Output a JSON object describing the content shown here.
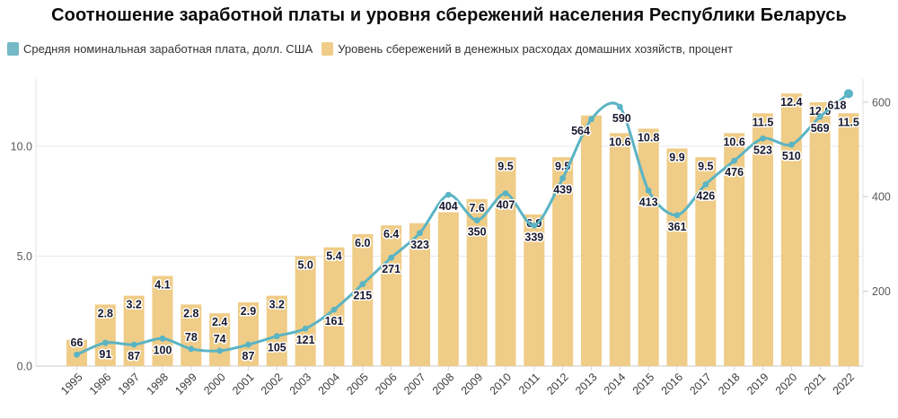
{
  "title": "Соотношение заработной платы и уровня сбережений населения Республики Беларусь",
  "legend": [
    {
      "label": "Средняя номинальная заработная плата, долл. США",
      "color": "#74b9c5"
    },
    {
      "label": "Уровень сбережений в денежных расходах домашних хозяйств, процент",
      "color": "#efcc87"
    }
  ],
  "colors": {
    "bar": "#efcc87",
    "line": "#5bb4c4",
    "label_text": "#18182e",
    "grid": "#e7e7e7",
    "baseline": "#c9c9c9",
    "axis_side": "#e3e3e3",
    "tick": "#d8d8d8",
    "axis_text": "#595959"
  },
  "chart_data": {
    "type": "bar",
    "subtype": "combo bar+line, dual axis",
    "title": "Соотношение заработной платы и уровня сбережений населения Республики Беларусь",
    "categories": [
      "1995",
      "1996",
      "1997",
      "1998",
      "1999",
      "2000",
      "2001",
      "2002",
      "2003",
      "2004",
      "2005",
      "2006",
      "2007",
      "2008",
      "2009",
      "2010",
      "2011",
      "2012",
      "2013",
      "2014",
      "2015",
      "2016",
      "2017",
      "2018",
      "2019",
      "2020",
      "2021",
      "2022"
    ],
    "series": [
      {
        "name": "Средняя номинальная заработная плата, долл. США",
        "type": "line",
        "axis": "right",
        "values": [
          66,
          91,
          87,
          100,
          78,
          74,
          87,
          105,
          121,
          161,
          215,
          271,
          323,
          404,
          350,
          407,
          339,
          439,
          564,
          590,
          413,
          361,
          426,
          476,
          523,
          510,
          569,
          618
        ],
        "label_pos": [
          "a",
          "b",
          "b",
          "b",
          "a",
          "a",
          "b",
          "b",
          "b",
          "b",
          "b",
          "b",
          "b",
          "b",
          "b",
          "b",
          "b",
          "b",
          "b",
          "b",
          "b",
          "b",
          "b",
          "b",
          "b",
          "b",
          "b",
          "b"
        ],
        "label_dx": [
          0,
          0,
          0,
          0,
          0,
          0,
          0,
          0,
          0,
          0,
          0,
          0,
          0,
          0,
          0,
          0,
          0,
          0,
          -12,
          2,
          0,
          0,
          0,
          0,
          0,
          0,
          0,
          -13
        ]
      },
      {
        "name": "Уровень сбережений в денежных расходах домашних хозяйств, процент",
        "type": "bar",
        "axis": "left",
        "values": [
          1.2,
          2.8,
          3.2,
          4.1,
          2.8,
          2.4,
          2.9,
          3.2,
          5.0,
          5.4,
          6.0,
          6.4,
          6.5,
          7.0,
          7.6,
          9.5,
          6.9,
          9.5,
          11.4,
          10.6,
          10.8,
          9.9,
          9.5,
          10.6,
          11.5,
          12.4,
          12.0,
          11.5
        ],
        "labels_hidden_for_years": [
          "1995",
          "2007",
          "2008",
          "2013"
        ],
        "note": "values for 1995, 2007, 2008, 2013 estimated from bar heights; their labels are not shown in the chart"
      }
    ],
    "left_axis": {
      "tick_labels": [
        "0.0",
        "5.0",
        "10.0"
      ],
      "tick_values": [
        0,
        5,
        10
      ],
      "range_hint": [
        0,
        13.06
      ],
      "grid": "horizontal lines at 5.0 and 10.0"
    },
    "right_axis": {
      "tick_labels": [
        "200",
        "400",
        "600"
      ],
      "tick_values": [
        200,
        400,
        600
      ],
      "range_hint": [
        42,
        649
      ]
    },
    "legend_position": "top-left, above plot",
    "x_labels_rotated_degrees": -45
  }
}
